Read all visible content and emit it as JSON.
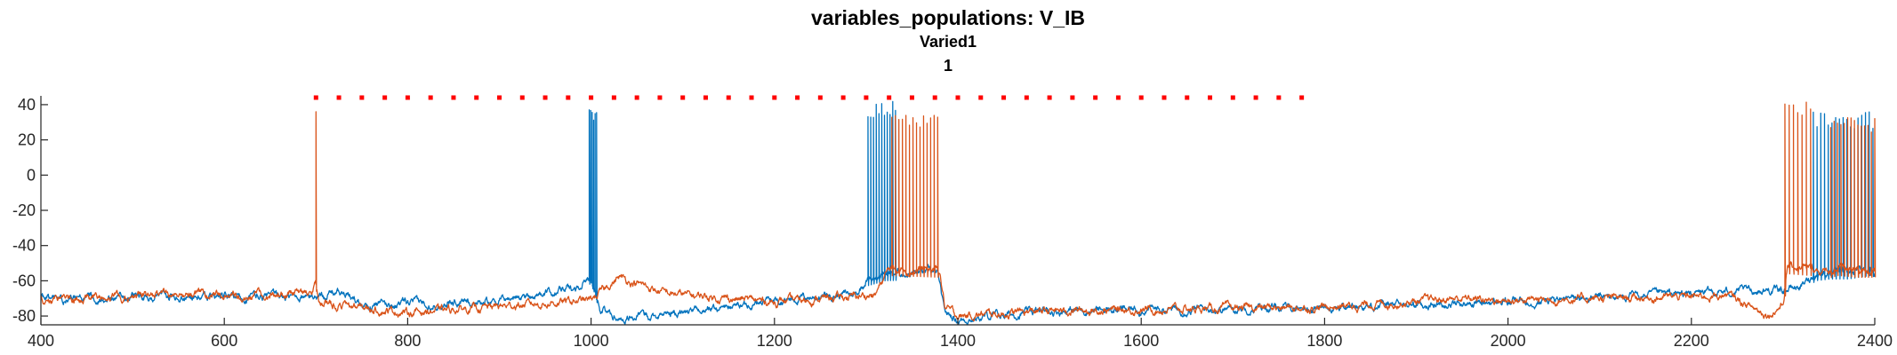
{
  "chart_data": {
    "type": "line",
    "title": "variables_populations: V_IB",
    "subtitle_lines": [
      "Varied1",
      "1"
    ],
    "xlabel": "",
    "ylabel": "",
    "xlim": [
      400,
      2400
    ],
    "ylim": [
      -85,
      45
    ],
    "xticks": [
      400,
      600,
      800,
      1000,
      1200,
      1400,
      1600,
      1800,
      2000,
      2200,
      2400
    ],
    "yticks": [
      -80,
      -60,
      -40,
      -20,
      0,
      20,
      40
    ],
    "grid": false,
    "legend": "none",
    "colors": {
      "blue": "#0072BD",
      "orange": "#D95319",
      "red": "#FF0000",
      "axis": "#262626"
    },
    "series": [
      {
        "color": "#0072BD",
        "baseline": [
          [
            400,
            -70
          ],
          [
            700,
            -69
          ],
          [
            720,
            -66
          ],
          [
            760,
            -74
          ],
          [
            900,
            -71
          ],
          [
            985,
            -64
          ],
          [
            1000,
            -57
          ],
          [
            1010,
            -76
          ],
          [
            1030,
            -81
          ],
          [
            1100,
            -78
          ],
          [
            1200,
            -71
          ],
          [
            1290,
            -67
          ],
          [
            1300,
            -59
          ],
          [
            1320,
            -56
          ],
          [
            1370,
            -55
          ],
          [
            1378,
            -56
          ],
          [
            1385,
            -78
          ],
          [
            1400,
            -82
          ],
          [
            1500,
            -77
          ],
          [
            1800,
            -75
          ],
          [
            2000,
            -72
          ],
          [
            2250,
            -66
          ],
          [
            2300,
            -65
          ],
          [
            2320,
            -63
          ],
          [
            2335,
            -56
          ],
          [
            2350,
            -55
          ],
          [
            2370,
            -55
          ],
          [
            2395,
            -53
          ],
          [
            2400,
            -54
          ]
        ],
        "spike_bursts": [
          {
            "range": [
              998,
              1006
            ],
            "peak": 40,
            "count": 6
          },
          {
            "range": [
              1302,
              1332
            ],
            "peak": 42,
            "count": 11
          },
          {
            "range": [
              2333,
              2398
            ],
            "peak": 36,
            "count": 17
          }
        ]
      },
      {
        "color": "#D95319",
        "baseline": [
          [
            400,
            -70
          ],
          [
            690,
            -67
          ],
          [
            700,
            -62
          ],
          [
            705,
            -73
          ],
          [
            800,
            -78
          ],
          [
            1000,
            -71
          ],
          [
            1030,
            -58
          ],
          [
            1080,
            -67
          ],
          [
            1200,
            -72
          ],
          [
            1310,
            -68
          ],
          [
            1325,
            -53
          ],
          [
            1380,
            -54
          ],
          [
            1386,
            -75
          ],
          [
            1400,
            -80
          ],
          [
            1500,
            -77
          ],
          [
            1800,
            -75
          ],
          [
            1950,
            -70
          ],
          [
            2000,
            -71
          ],
          [
            2200,
            -69
          ],
          [
            2240,
            -68
          ],
          [
            2265,
            -75
          ],
          [
            2285,
            -79
          ],
          [
            2300,
            -73
          ],
          [
            2305,
            -52
          ],
          [
            2330,
            -53
          ],
          [
            2345,
            -55
          ],
          [
            2360,
            -53
          ],
          [
            2380,
            -54
          ],
          [
            2400,
            -54
          ]
        ],
        "spike_bursts": [
          {
            "range": [
              700,
              701
            ],
            "peak": 43,
            "count": 1
          },
          {
            "range": [
              1328,
              1378
            ],
            "peak": 35,
            "count": 14
          },
          {
            "range": [
              2302,
              2330
            ],
            "peak": 43,
            "count": 7
          },
          {
            "range": [
              2352,
              2400
            ],
            "peak": 33,
            "count": 14
          }
        ]
      }
    ],
    "markers": {
      "color": "#FF0000",
      "style": "dotted",
      "y": 44,
      "x_start": 700,
      "x_end": 1780,
      "step": 25
    }
  }
}
